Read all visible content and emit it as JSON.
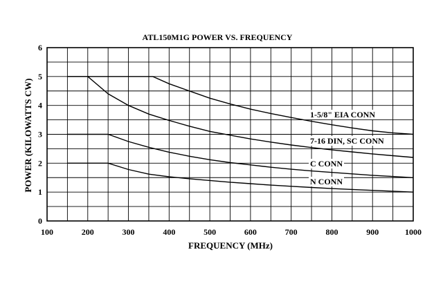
{
  "chart_data": {
    "type": "line",
    "title": "ATL150M1G POWER VS. FREQUENCY",
    "xlabel": "FREQUENCY (MHz)",
    "ylabel": "POWER (KILOWATTS CW)",
    "xlim": [
      100,
      1000
    ],
    "ylim": [
      0,
      6
    ],
    "x_ticks": [
      "100",
      "200",
      "300",
      "400",
      "500",
      "600",
      "700",
      "800",
      "900",
      "1000"
    ],
    "y_ticks": [
      "0",
      "1",
      "2",
      "3",
      "4",
      "5",
      "6"
    ],
    "grid": true,
    "series": [
      {
        "name": "1-5/8\" EIA CONN",
        "x": [
          150,
          200,
          250,
          300,
          360,
          400,
          450,
          500,
          550,
          600,
          650,
          700,
          750,
          800,
          850,
          900,
          950,
          1000
        ],
        "y": [
          5.0,
          5.0,
          5.0,
          5.0,
          5.0,
          4.75,
          4.5,
          4.25,
          4.05,
          3.87,
          3.72,
          3.58,
          3.45,
          3.33,
          3.22,
          3.12,
          3.05,
          3.0
        ]
      },
      {
        "name": "7-16 DIN, SC CONN",
        "x": [
          150,
          200,
          250,
          300,
          350,
          400,
          450,
          500,
          550,
          600,
          650,
          700,
          750,
          800,
          850,
          900,
          950,
          1000
        ],
        "y": [
          5.0,
          5.0,
          4.4,
          4.0,
          3.7,
          3.48,
          3.28,
          3.1,
          2.97,
          2.84,
          2.73,
          2.63,
          2.54,
          2.46,
          2.39,
          2.32,
          2.26,
          2.2
        ]
      },
      {
        "name": "C CONN",
        "x": [
          150,
          200,
          250,
          300,
          350,
          400,
          450,
          500,
          550,
          600,
          650,
          700,
          750,
          800,
          850,
          900,
          950,
          1000
        ],
        "y": [
          3.0,
          3.0,
          3.0,
          2.75,
          2.55,
          2.38,
          2.24,
          2.12,
          2.02,
          1.94,
          1.86,
          1.79,
          1.73,
          1.68,
          1.63,
          1.58,
          1.54,
          1.5
        ]
      },
      {
        "name": "N CONN",
        "x": [
          150,
          200,
          250,
          300,
          350,
          400,
          450,
          500,
          550,
          600,
          650,
          700,
          750,
          800,
          850,
          900,
          950,
          1000
        ],
        "y": [
          2.0,
          2.0,
          2.0,
          1.78,
          1.62,
          1.53,
          1.46,
          1.4,
          1.34,
          1.29,
          1.24,
          1.2,
          1.16,
          1.12,
          1.09,
          1.06,
          1.03,
          1.0
        ]
      }
    ]
  }
}
